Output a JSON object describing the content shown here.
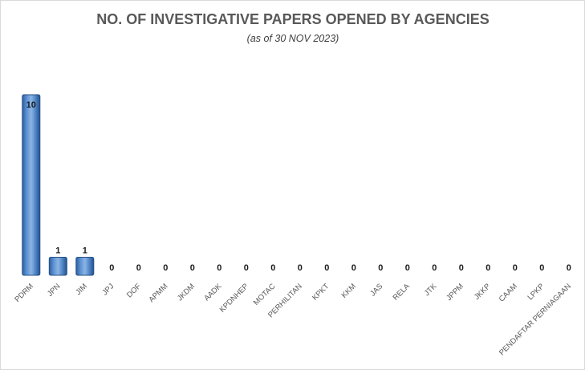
{
  "chart_data": {
    "type": "bar",
    "title": "NO. OF INVESTIGATIVE PAPERS OPENED BY AGENCIES",
    "subtitle": "(as of 30 NOV 2023)",
    "xlabel": "",
    "ylabel": "",
    "categories": [
      "PDRM",
      "JPN",
      "JIM",
      "JPJ",
      "DOF",
      "APMM",
      "JKDM",
      "AADK",
      "KPDNHEP",
      "MOTAC",
      "PERHILITAN",
      "KPKT",
      "KKM",
      "JAS",
      "RELA",
      "JTK",
      "JPPM",
      "JKKP",
      "CAAM",
      "LPKP",
      "PENDAFTAR PERNIAGAAN"
    ],
    "values": [
      10,
      1,
      1,
      0,
      0,
      0,
      0,
      0,
      0,
      0,
      0,
      0,
      0,
      0,
      0,
      0,
      0,
      0,
      0,
      0,
      0
    ],
    "data_labels": [
      "10",
      "1",
      "1",
      "0",
      "0",
      "0",
      "0",
      "0",
      "0",
      "0",
      "0",
      "0",
      "0",
      "0",
      "0",
      "0",
      "0",
      "0",
      "0",
      "0",
      "0"
    ],
    "ylim": [
      0,
      10
    ],
    "grid": false,
    "legend": "none",
    "colors": {
      "bar": "#4a7ebb",
      "bar_highlight": "#8db4e2",
      "bar_dark": "#254f86",
      "label": "#1a1a1a",
      "tick": "#595959",
      "title": "#595959"
    }
  }
}
